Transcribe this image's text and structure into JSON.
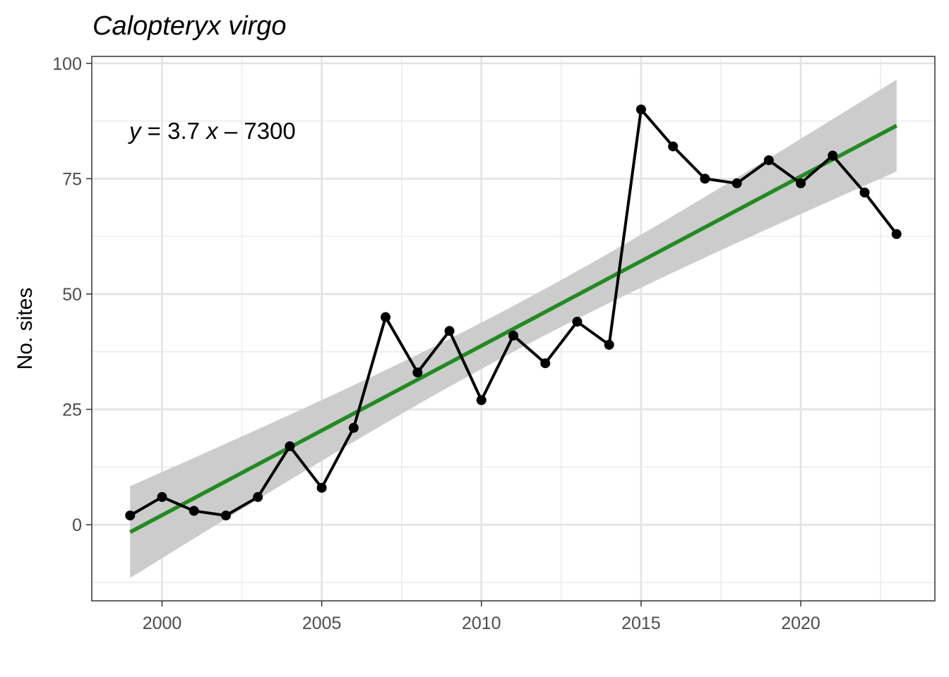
{
  "chart_data": {
    "type": "line",
    "title": "Calopteryx virgo",
    "xlabel": "",
    "ylabel": "No. sites",
    "xlim": [
      1997.8,
      2024.2
    ],
    "ylim": [
      -16.5,
      101.5
    ],
    "x_ticks": [
      2000,
      2005,
      2010,
      2015,
      2020
    ],
    "y_ticks": [
      0,
      25,
      50,
      75,
      100
    ],
    "grid": true,
    "legend": "none",
    "series": [
      {
        "x": [
          1999,
          2000,
          2001,
          2002,
          2003,
          2004,
          2005,
          2006,
          2007,
          2008,
          2009,
          2010,
          2011,
          2012,
          2013,
          2014,
          2015,
          2016,
          2017,
          2018,
          2019,
          2020,
          2021,
          2022,
          2023
        ],
        "values": [
          2,
          6,
          3,
          2,
          6,
          17,
          8,
          21,
          45,
          33,
          42,
          27,
          41,
          35,
          44,
          39,
          90,
          82,
          75,
          74,
          79,
          74,
          80,
          72,
          63
        ],
        "color": "#000000"
      }
    ],
    "trend": {
      "equation_parts": [
        "y",
        " = 3.7 ",
        "x",
        " – 7300"
      ],
      "x": [
        1999,
        2023
      ],
      "values": [
        -1.6,
        86.5
      ],
      "ci_lower": [
        -11.6,
        76.6
      ],
      "ci_upper": [
        8.4,
        96.4
      ],
      "line_color": "#228B22",
      "band_color": "#cccccc"
    }
  }
}
